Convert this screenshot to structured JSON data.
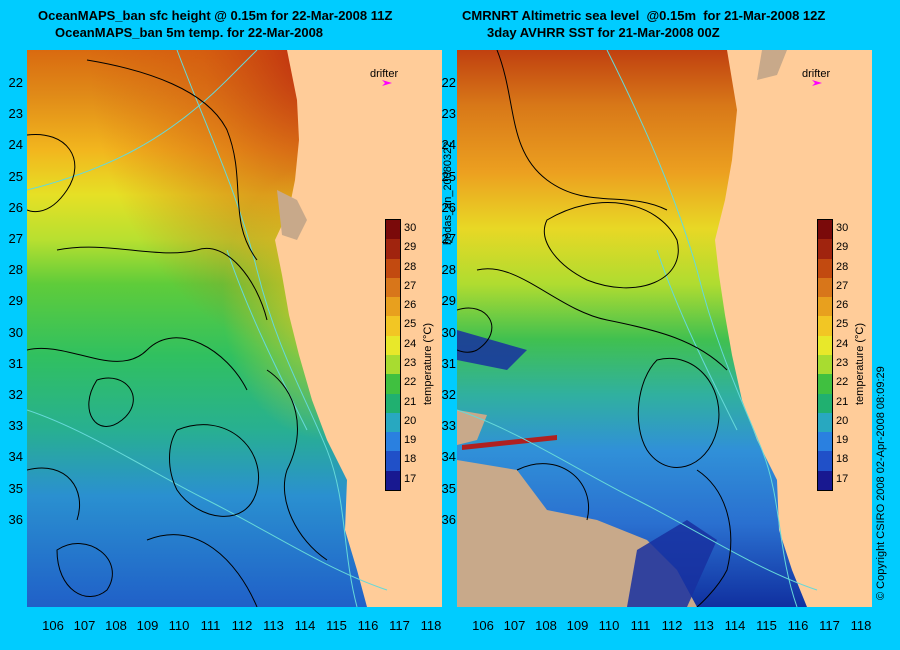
{
  "left": {
    "title_line1": "OceanMAPS_ban sfc height @ 0.15m for 22-Mar-2008 11Z",
    "title_line2": "OceanMAPS_ban 5m temp. for 22-Mar-2008"
  },
  "right": {
    "title_line1": "CMRNRT Altimetric sea level  @0.15m  for 21-Mar-2008 12Z",
    "title_line2": "3day AVHRR SST for 21-Mar-2008 00Z"
  },
  "drifter_label": "drifter",
  "side_label": "bodas_an_20080322",
  "copyright": "© Copyright CSIRO 2008   02-Apr-2008 08:09:29",
  "colorbar": {
    "title": "temperature (°C)",
    "ticks": [
      "30",
      "29",
      "28",
      "27",
      "26",
      "25",
      "24",
      "23",
      "22",
      "21",
      "20",
      "19",
      "18",
      "17"
    ]
  },
  "lat_ticks": [
    "22",
    "23",
    "24",
    "25",
    "26",
    "27",
    "28",
    "29",
    "30",
    "31",
    "32",
    "33",
    "34",
    "35",
    "36"
  ],
  "lon_ticks": [
    "106",
    "107",
    "108",
    "109",
    "110",
    "111",
    "112",
    "113",
    "114",
    "115",
    "116",
    "117",
    "118"
  ],
  "colors": {
    "background": "#00ccff",
    "land": "#ffcc99",
    "nodata": "#c8a98a",
    "contour": "#000000",
    "bathymetry": "#66d9d9",
    "drifter": "#ff00ff"
  }
}
